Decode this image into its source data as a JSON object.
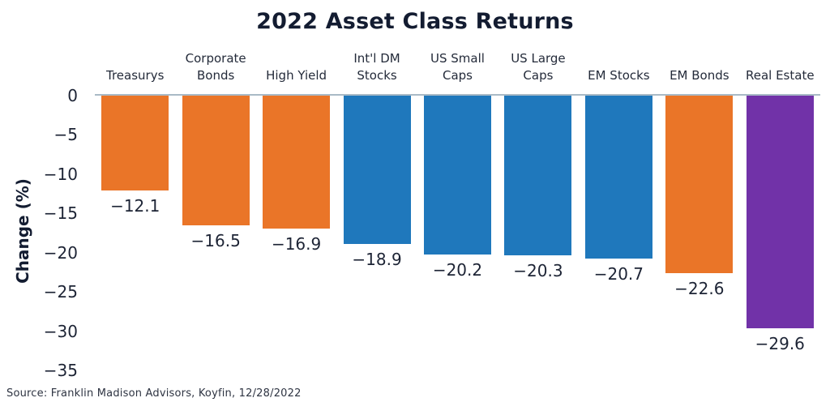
{
  "chart_data": {
    "type": "bar",
    "title": "2022 Asset Class Returns",
    "ylabel": "Change (%)",
    "xlabel": "",
    "categories": [
      "Treasurys",
      "Corporate Bonds",
      "High Yield",
      "Int'l DM Stocks",
      "US Small Caps",
      "US Large Caps",
      "EM Stocks",
      "EM Bonds",
      "Real Estate"
    ],
    "category_lines": [
      [
        "Treasurys"
      ],
      [
        "Corporate",
        "Bonds"
      ],
      [
        "High Yield"
      ],
      [
        "Int'l DM",
        "Stocks"
      ],
      [
        "US Small",
        "Caps"
      ],
      [
        "US Large",
        "Caps"
      ],
      [
        "EM Stocks"
      ],
      [
        "EM Bonds"
      ],
      [
        "Real Estate"
      ]
    ],
    "values": [
      -12.1,
      -16.5,
      -16.9,
      -18.9,
      -20.2,
      -20.3,
      -20.7,
      -22.6,
      -29.6
    ],
    "value_labels": [
      "−12.1",
      "−16.5",
      "−16.9",
      "−18.9",
      "−20.2",
      "−20.3",
      "−20.7",
      "−22.6",
      "−29.6"
    ],
    "bar_colors": [
      "#EA7528",
      "#EA7528",
      "#EA7528",
      "#1F78BC",
      "#1F78BC",
      "#1F78BC",
      "#1F78BC",
      "#EA7528",
      "#7132A8"
    ],
    "yticks": [
      0,
      -5,
      -10,
      -15,
      -20,
      -25,
      -30,
      -35
    ],
    "ytick_labels": [
      "0",
      "−5",
      "−10",
      "−15",
      "−20",
      "−25",
      "−30",
      "−35"
    ],
    "ylim": [
      0,
      -35
    ],
    "grid": false,
    "legend": null,
    "category_labels_position": "top",
    "source": "Source: Franklin Madison Advisors, Koyfin, 12/28/2022",
    "colors": {
      "orange": "#EA7528",
      "blue": "#1F78BC",
      "purple": "#7132A8",
      "title_text": "#131C31",
      "label_text": "#1D2435",
      "zero_line": "#A9BAC6",
      "background": "#FFFFFF"
    }
  }
}
